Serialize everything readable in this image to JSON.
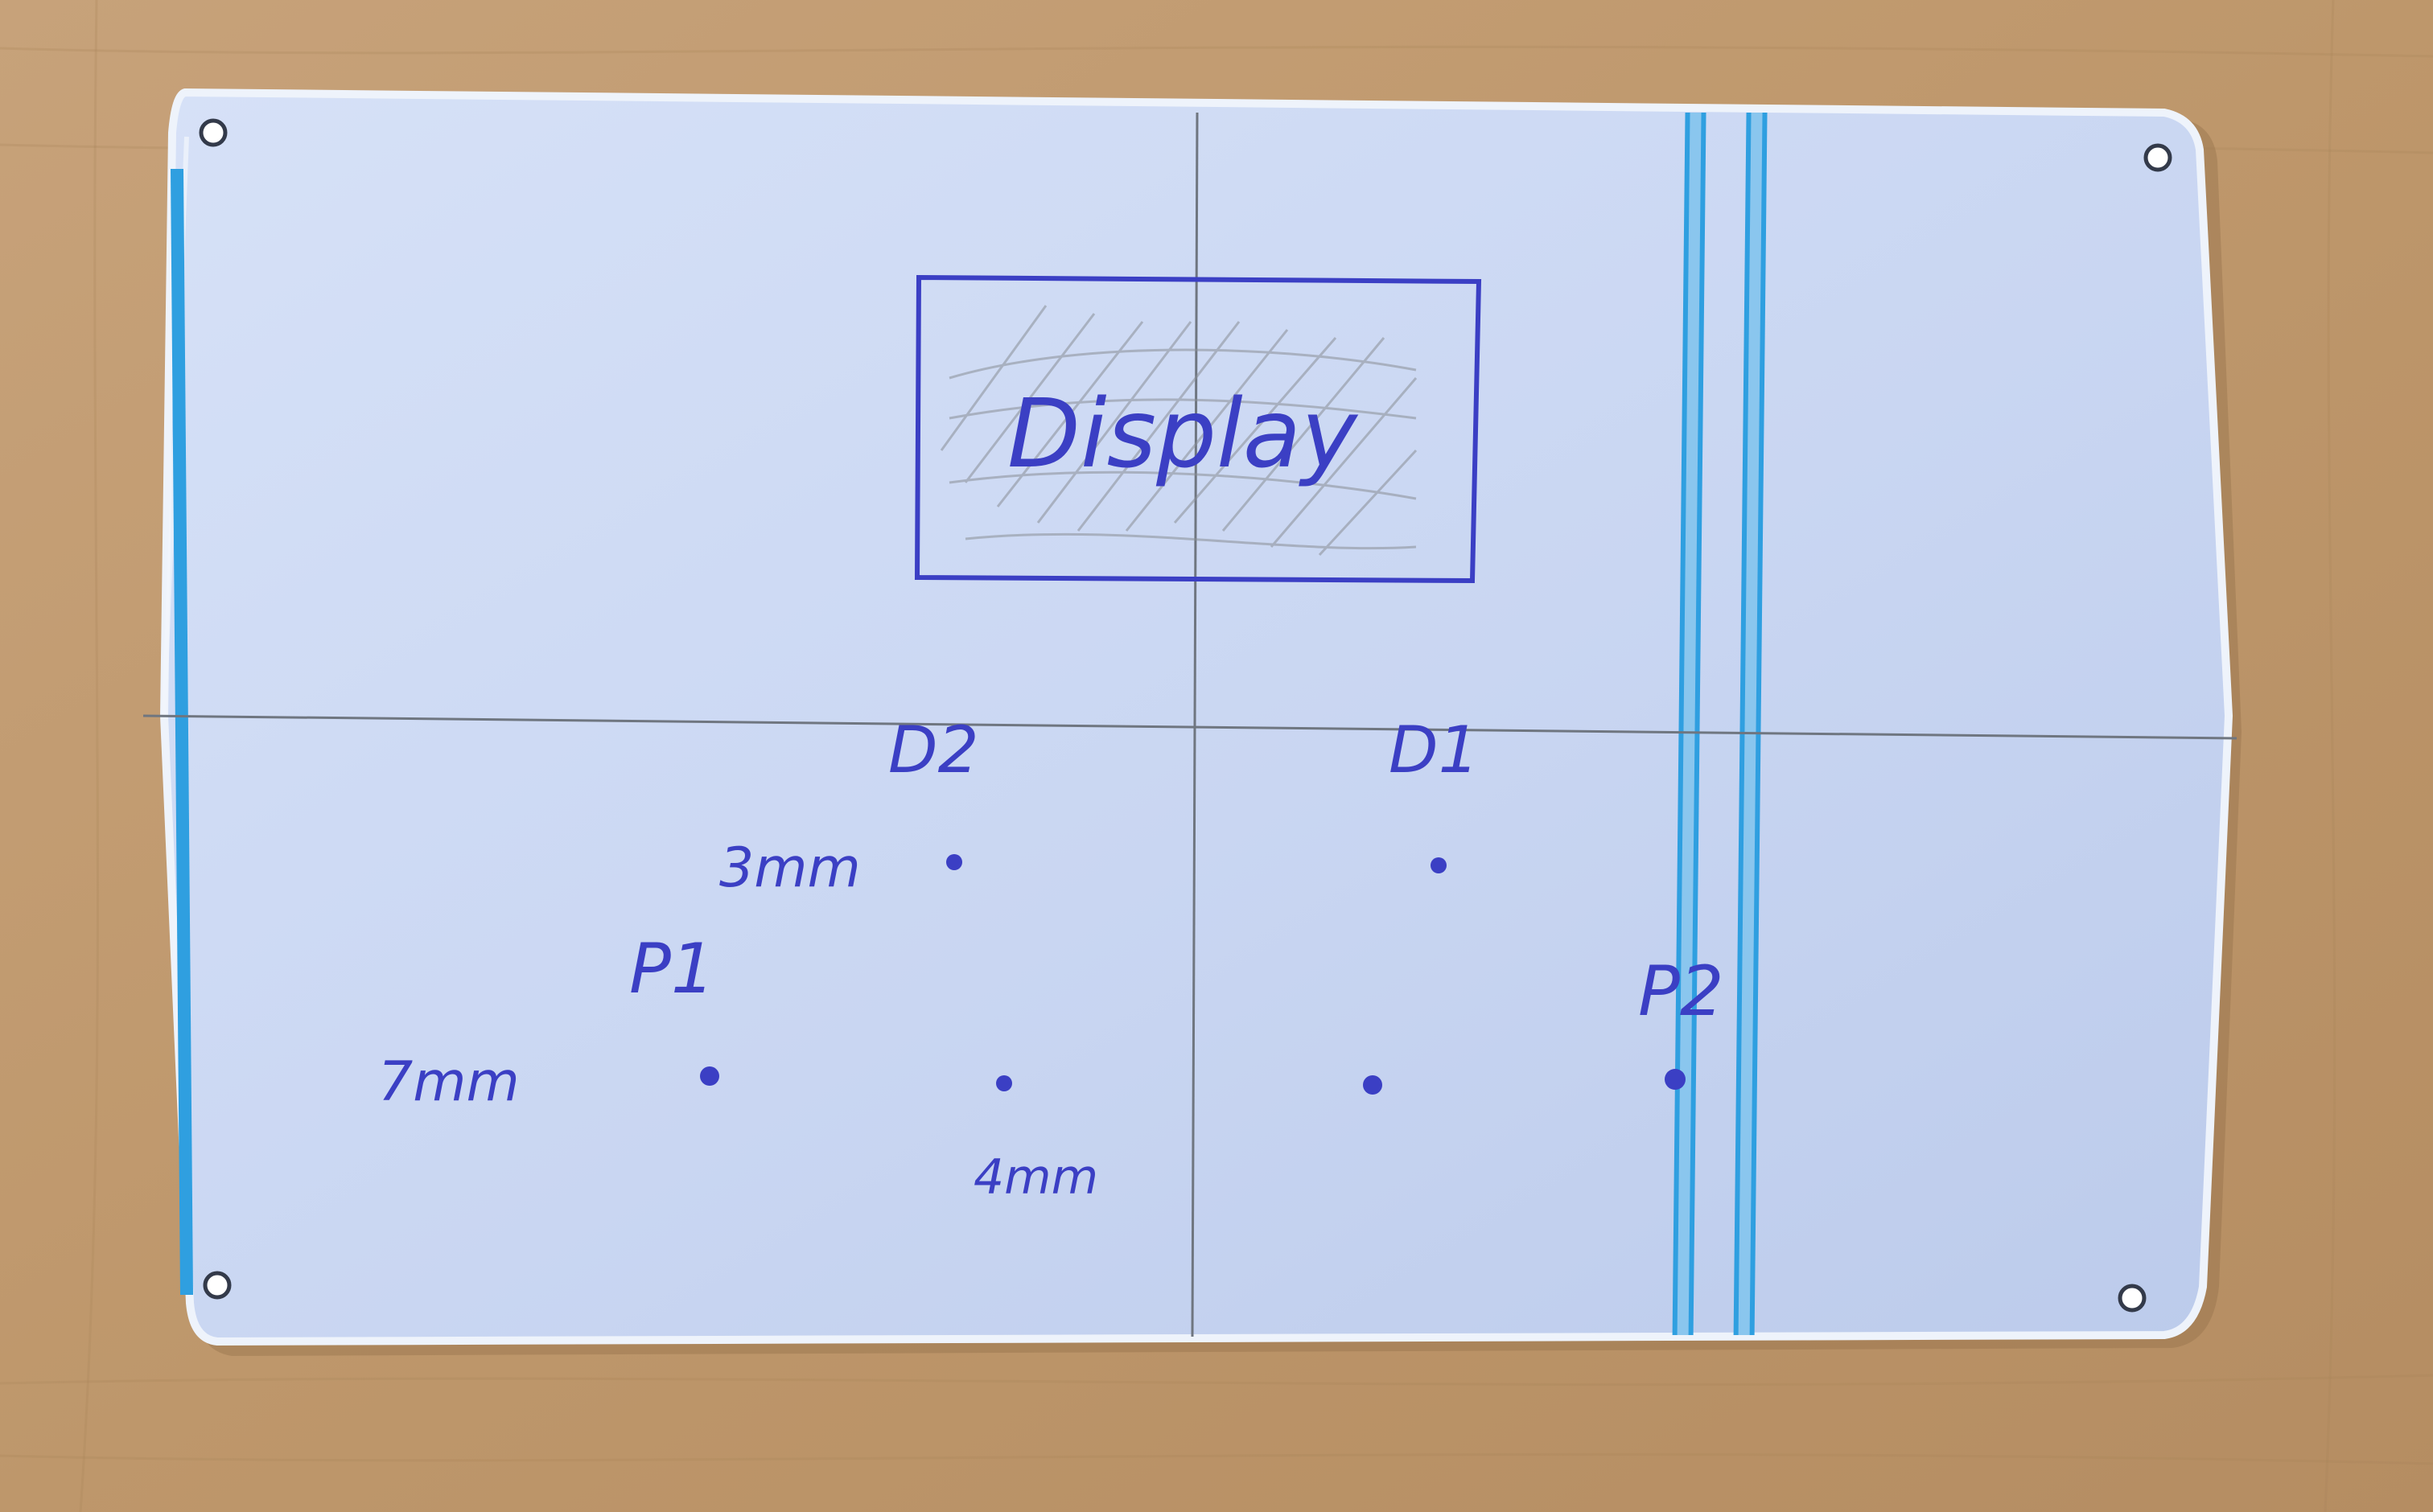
{
  "colors": {
    "wood": "#c09a70",
    "wood_dark": "#a98459",
    "panel": "#cfdcf6",
    "panel_edge": "#eef3fb",
    "stripe": "#2f9fe0",
    "ink": "#3b3fc4",
    "pencil": "#6f7680",
    "hole": "#333a4a"
  },
  "panel": {
    "display_label": "Display",
    "labels": {
      "d2": "D2",
      "d1": "D1",
      "p1": "P1",
      "p2": "P2",
      "dim_3mm": "3mm",
      "dim_7mm": "7mm",
      "dim_4mm": "4mm"
    }
  }
}
